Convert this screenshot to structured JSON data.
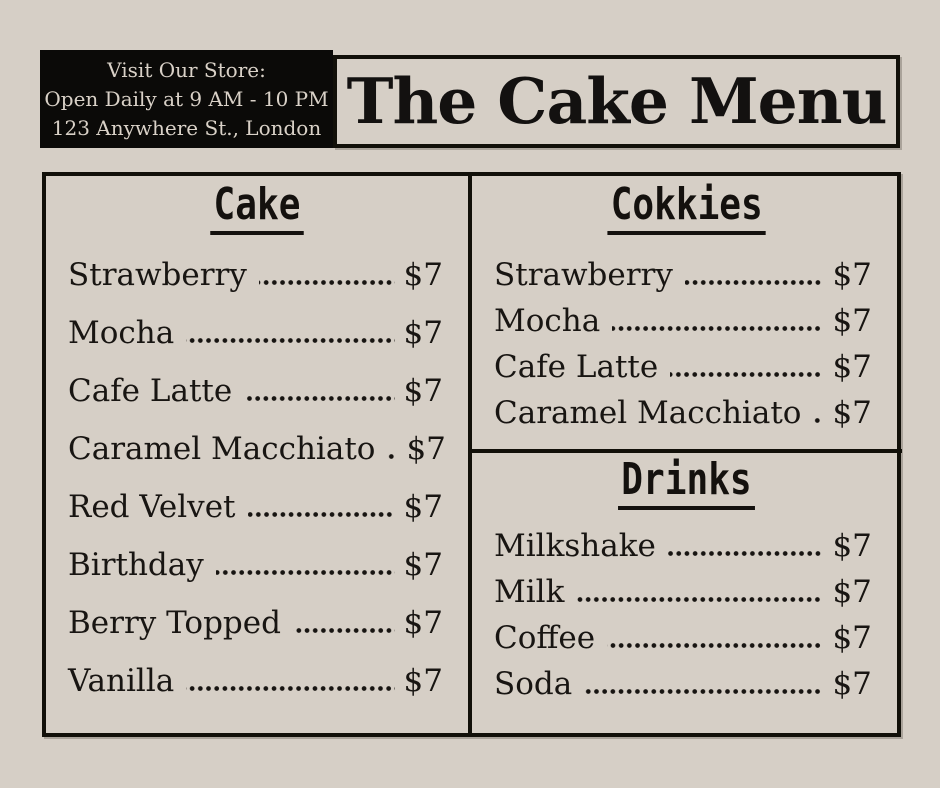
{
  "colors": {
    "background": "#d6cfc6",
    "ink": "#121009",
    "header_bg": "#0b0a08",
    "header_text": "#d9d1c7"
  },
  "store_info": {
    "lines": [
      "Visit Our Store:",
      "Open Daily at 9 AM - 10 PM",
      "123 Anywhere St., London"
    ]
  },
  "title": "The Cake Menu",
  "sections": [
    {
      "heading": "Cake",
      "items": [
        {
          "name": "Strawberry",
          "price": "$7"
        },
        {
          "name": "Mocha",
          "price": "$7"
        },
        {
          "name": "Cafe Latte",
          "price": "$7"
        },
        {
          "name": "Caramel Macchiato",
          "price": "$7"
        },
        {
          "name": "Red Velvet",
          "price": "$7"
        },
        {
          "name": "Birthday",
          "price": "$7"
        },
        {
          "name": "Berry Topped",
          "price": "$7"
        },
        {
          "name": "Vanilla",
          "price": "$7"
        }
      ]
    },
    {
      "heading": "Cokkies",
      "items": [
        {
          "name": "Strawberry",
          "price": "$7"
        },
        {
          "name": "Mocha",
          "price": "$7"
        },
        {
          "name": "Cafe Latte",
          "price": "$7"
        },
        {
          "name": "Caramel Macchiato",
          "price": "$7"
        }
      ]
    },
    {
      "heading": "Drinks",
      "items": [
        {
          "name": "Milkshake",
          "price": "$7"
        },
        {
          "name": "Milk",
          "price": "$7"
        },
        {
          "name": "Coffee",
          "price": "$7"
        },
        {
          "name": "Soda",
          "price": "$7"
        }
      ]
    }
  ]
}
